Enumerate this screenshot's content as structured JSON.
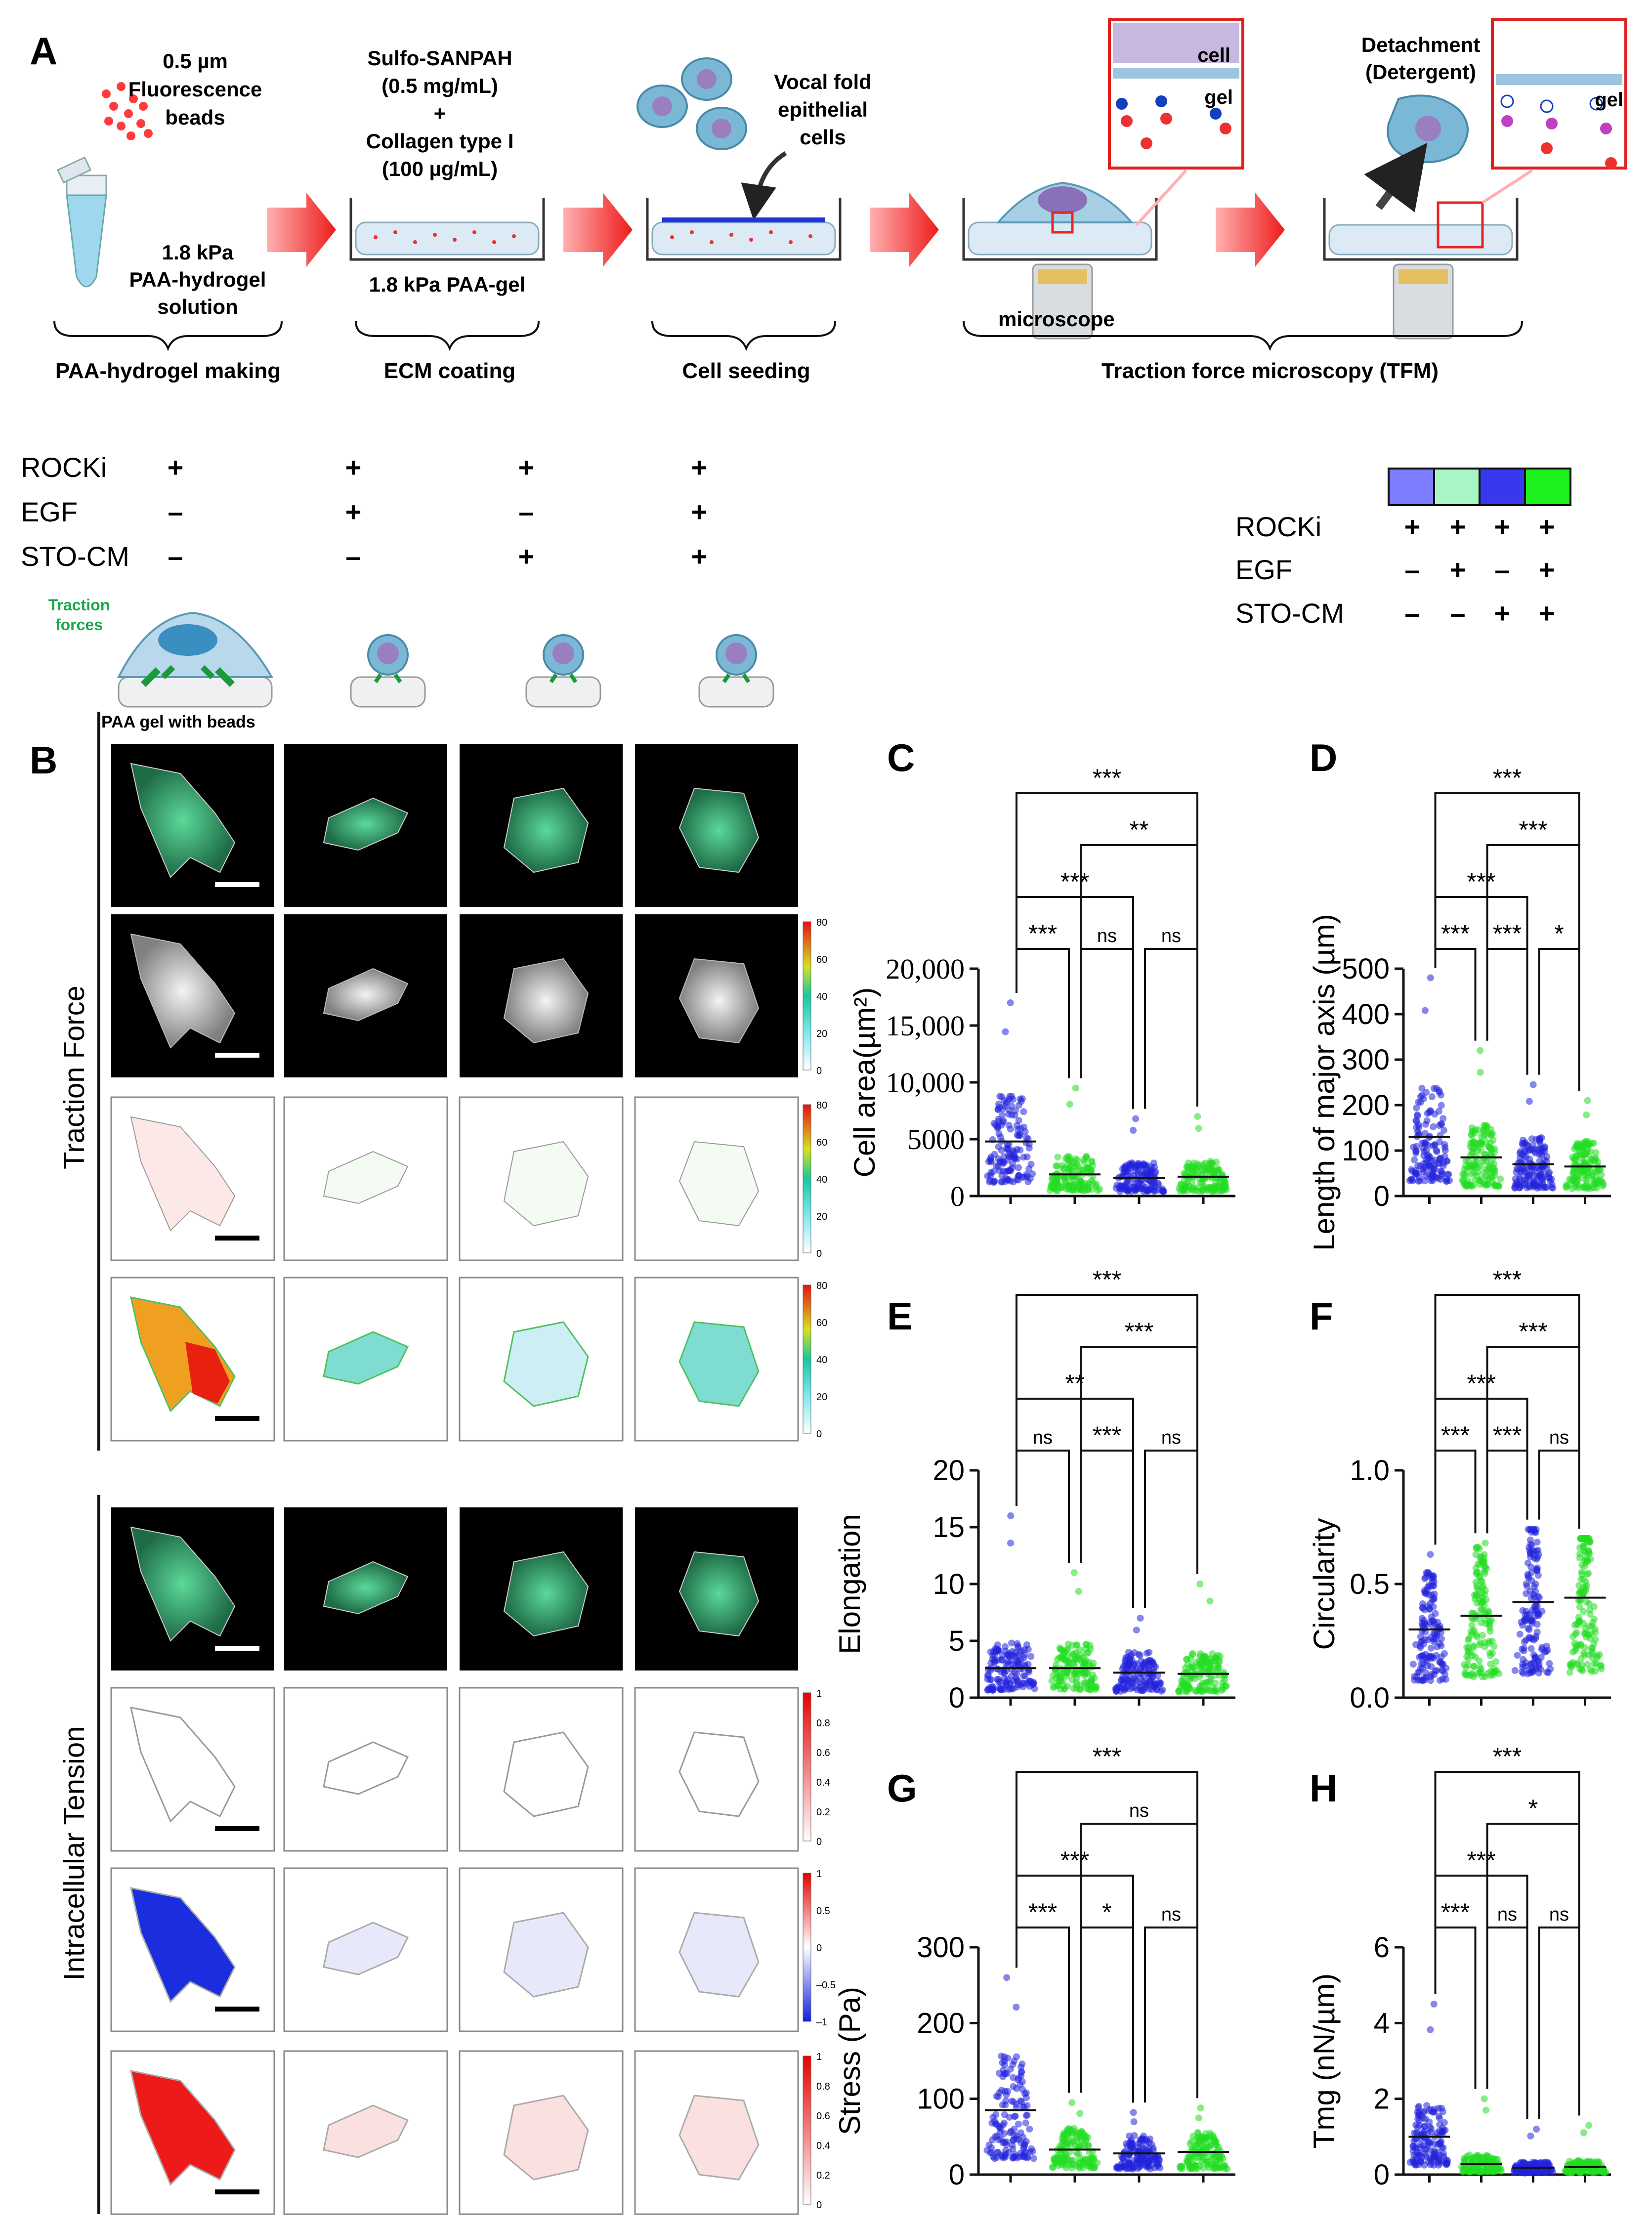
{
  "panel_letters": {
    "A": "A",
    "B": "B",
    "C": "C",
    "D": "D",
    "E": "E",
    "F": "F",
    "G": "G",
    "H": "H"
  },
  "workflow": {
    "beads_line1": "0.5 µm",
    "beads_line2": "Fluorescence",
    "beads_line3": "beads",
    "solution_line1": "1.8 kPa",
    "solution_line2": "PAA-hydrogel",
    "solution_line3": "solution",
    "coating_line1": "Sulfo-SANPAH",
    "coating_line2": "(0.5 mg/mL)",
    "coating_line3": "+",
    "coating_line4": "Collagen type I",
    "coating_line5": "(100 µg/mL)",
    "gel_label": "1.8 kPa PAA-gel",
    "cells_line1": "Vocal fold",
    "cells_line2": "epithelial",
    "cells_line3": "cells",
    "detach_line1": "Detachment",
    "detach_line2": "(Detergent)",
    "cell_inset": "cell",
    "gel_inset": "gel",
    "gel_inset2": "gel",
    "microscope": "microscope",
    "step1": "PAA-hydrogel making",
    "step2": "ECM coating",
    "step3": "Cell seeding",
    "step4": "Traction force microscopy (TFM)"
  },
  "conditions": {
    "row_labels": [
      "ROCKi",
      "EGF",
      "STO-CM"
    ],
    "matrix": [
      [
        "+",
        "+",
        "+",
        "+"
      ],
      [
        "–",
        "+",
        "–",
        "+"
      ],
      [
        "–",
        "–",
        "+",
        "+"
      ]
    ],
    "traction_line1": "Traction",
    "traction_line2": "forces",
    "gel_beads": "PAA gel with beads"
  },
  "legend": {
    "colors": [
      "#7d7dff",
      "#a8f5c5",
      "#3838ee",
      "#1ef21e"
    ],
    "row_labels": [
      "ROCKi",
      "EGF",
      "STO-CM"
    ],
    "matrix": [
      [
        "+",
        "+",
        "+",
        "+"
      ],
      [
        "–",
        "+",
        "–",
        "+"
      ],
      [
        "–",
        "–",
        "+",
        "+"
      ]
    ]
  },
  "panel_b": {
    "section1": "Traction Force",
    "section2": "Intracellular Tension",
    "cb_traction": [
      "80",
      "60",
      "40",
      "20",
      "0"
    ],
    "cb_unit": [
      "1",
      "0.8",
      "0.6",
      "0.4",
      "0.2",
      "0"
    ],
    "cb_diverge": [
      "1",
      "0.5",
      "0",
      "–0.5",
      "–1"
    ]
  },
  "chart_data": [
    {
      "panel": "C",
      "type": "scatter",
      "ylabel": "Cell area(µm²)",
      "yticks": [
        "0",
        "5000",
        "10,000",
        "15,000",
        "20,000"
      ],
      "ylim": [
        0,
        20000
      ],
      "series_colors": [
        "#2222dd",
        "#22dd22",
        "#2222dd",
        "#22dd22"
      ],
      "groups": [
        {
          "median": 4800,
          "max": 17000
        },
        {
          "median": 1900,
          "max": 9500
        },
        {
          "median": 1600,
          "max": 6800
        },
        {
          "median": 1700,
          "max": 7000
        }
      ],
      "comparisons": [
        {
          "from": 1,
          "to": 2,
          "label": "***"
        },
        {
          "from": 2,
          "to": 3,
          "label": "ns"
        },
        {
          "from": 3,
          "to": 4,
          "label": "ns"
        },
        {
          "from": 1,
          "to": 3,
          "label": "***"
        },
        {
          "from": 2,
          "to": 4,
          "label": "**"
        },
        {
          "from": 1,
          "to": 4,
          "label": "***"
        }
      ]
    },
    {
      "panel": "D",
      "type": "scatter",
      "ylabel": "Length of major axis (µm)",
      "yticks": [
        "0",
        "100",
        "200",
        "300",
        "400",
        "500"
      ],
      "ylim": [
        0,
        500
      ],
      "series_colors": [
        "#2222dd",
        "#22dd22",
        "#2222dd",
        "#22dd22"
      ],
      "groups": [
        {
          "median": 130,
          "max": 480
        },
        {
          "median": 85,
          "max": 320
        },
        {
          "median": 70,
          "max": 245
        },
        {
          "median": 65,
          "max": 210
        }
      ],
      "comparisons": [
        {
          "from": 1,
          "to": 2,
          "label": "***"
        },
        {
          "from": 3,
          "to": 4,
          "label": "*"
        },
        {
          "from": 1,
          "to": 3,
          "label": "***"
        },
        {
          "from": 2,
          "to": 3,
          "label": "***"
        },
        {
          "from": 2,
          "to": 4,
          "label": "***"
        },
        {
          "from": 1,
          "to": 4,
          "label": "***"
        }
      ]
    },
    {
      "panel": "E",
      "type": "scatter",
      "ylabel": "Elongation",
      "yticks": [
        "0",
        "5",
        "10",
        "15",
        "20"
      ],
      "ylim": [
        0,
        20
      ],
      "series_colors": [
        "#2222dd",
        "#22dd22",
        "#2222dd",
        "#22dd22"
      ],
      "groups": [
        {
          "median": 2.6,
          "max": 16
        },
        {
          "median": 2.6,
          "max": 11
        },
        {
          "median": 2.2,
          "max": 7
        },
        {
          "median": 2.1,
          "max": 10
        }
      ],
      "comparisons": [
        {
          "from": 1,
          "to": 2,
          "label": "ns"
        },
        {
          "from": 2,
          "to": 3,
          "label": "***"
        },
        {
          "from": 3,
          "to": 4,
          "label": "ns"
        },
        {
          "from": 1,
          "to": 3,
          "label": "**"
        },
        {
          "from": 2,
          "to": 4,
          "label": "***"
        },
        {
          "from": 1,
          "to": 4,
          "label": "***"
        }
      ]
    },
    {
      "panel": "F",
      "type": "scatter",
      "ylabel": "Circularity",
      "yticks": [
        "0.0",
        "0.5",
        "1.0"
      ],
      "ylim": [
        0,
        1
      ],
      "series_colors": [
        "#2222dd",
        "#22dd22",
        "#2222dd",
        "#22dd22"
      ],
      "groups": [
        {
          "median": 0.3,
          "max": 0.63
        },
        {
          "median": 0.36,
          "max": 0.68
        },
        {
          "median": 0.42,
          "max": 0.74
        },
        {
          "median": 0.44,
          "max": 0.7
        }
      ],
      "comparisons": [
        {
          "from": 1,
          "to": 2,
          "label": "***"
        },
        {
          "from": 3,
          "to": 4,
          "label": "ns"
        },
        {
          "from": 2,
          "to": 3,
          "label": "***"
        },
        {
          "from": 1,
          "to": 3,
          "label": "***"
        },
        {
          "from": 2,
          "to": 4,
          "label": "***"
        },
        {
          "from": 1,
          "to": 4,
          "label": "***"
        }
      ]
    },
    {
      "panel": "G",
      "type": "scatter",
      "ylabel": "Stress (Pa)",
      "yticks": [
        "0",
        "100",
        "200",
        "300"
      ],
      "ylim": [
        0,
        300
      ],
      "series_colors": [
        "#2222dd",
        "#22dd22",
        "#2222dd",
        "#22dd22"
      ],
      "groups": [
        {
          "median": 85,
          "max": 260
        },
        {
          "median": 33,
          "max": 95
        },
        {
          "median": 28,
          "max": 82
        },
        {
          "median": 30,
          "max": 88
        }
      ],
      "comparisons": [
        {
          "from": 1,
          "to": 2,
          "label": "***"
        },
        {
          "from": 2,
          "to": 3,
          "label": "*"
        },
        {
          "from": 3,
          "to": 4,
          "label": "ns"
        },
        {
          "from": 1,
          "to": 3,
          "label": "***"
        },
        {
          "from": 2,
          "to": 4,
          "label": "ns"
        },
        {
          "from": 1,
          "to": 4,
          "label": "***"
        }
      ]
    },
    {
      "panel": "H",
      "type": "scatter",
      "ylabel": "Tmg (nN/µm)",
      "yticks": [
        "0",
        "2",
        "4",
        "6"
      ],
      "ylim": [
        0,
        6
      ],
      "series_colors": [
        "#2222dd",
        "#22dd22",
        "#2222dd",
        "#22dd22"
      ],
      "groups": [
        {
          "median": 1.0,
          "max": 4.5
        },
        {
          "median": 0.28,
          "max": 2.0
        },
        {
          "median": 0.18,
          "max": 1.2
        },
        {
          "median": 0.2,
          "max": 1.3
        }
      ],
      "comparisons": [
        {
          "from": 1,
          "to": 2,
          "label": "***"
        },
        {
          "from": 2,
          "to": 3,
          "label": "ns"
        },
        {
          "from": 3,
          "to": 4,
          "label": "ns"
        },
        {
          "from": 1,
          "to": 3,
          "label": "***"
        },
        {
          "from": 2,
          "to": 4,
          "label": "*"
        },
        {
          "from": 1,
          "to": 4,
          "label": "***"
        }
      ]
    }
  ]
}
